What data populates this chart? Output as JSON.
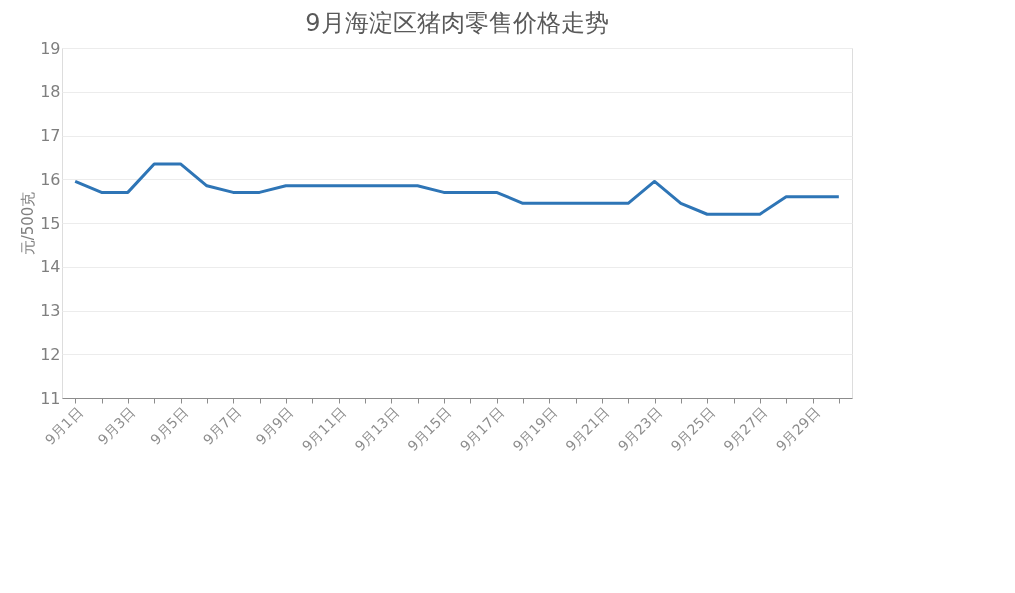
{
  "chart_data": {
    "type": "line",
    "title": "9月海淀区猪肉零售价格走势",
    "ylabel": "元/500克",
    "categories": [
      "9月1日",
      null,
      "9月3日",
      null,
      "9月5日",
      null,
      "9月7日",
      null,
      "9月9日",
      null,
      "9月11日",
      null,
      "9月13日",
      null,
      "9月15日",
      null,
      "9月17日",
      null,
      "9月19日",
      null,
      "9月21日",
      null,
      "9月23日",
      null,
      "9月25日",
      null,
      "9月27日",
      null,
      "9月29日",
      null
    ],
    "series": [
      {
        "color": "#2e75b6",
        "values": [
          15.95,
          15.7,
          15.7,
          16.35,
          16.35,
          15.85,
          15.7,
          15.7,
          15.85,
          15.85,
          15.85,
          15.85,
          15.85,
          15.85,
          15.7,
          15.7,
          15.7,
          15.45,
          15.45,
          15.45,
          15.45,
          15.45,
          15.95,
          15.45,
          15.2,
          15.2,
          15.2,
          15.6,
          15.6,
          15.6
        ]
      }
    ],
    "ylim": [
      11,
      19
    ],
    "yticks": [
      11,
      12,
      13,
      14,
      15,
      16,
      17,
      18,
      19
    ],
    "grid": "y",
    "marker": "none",
    "line_style": "solid"
  }
}
